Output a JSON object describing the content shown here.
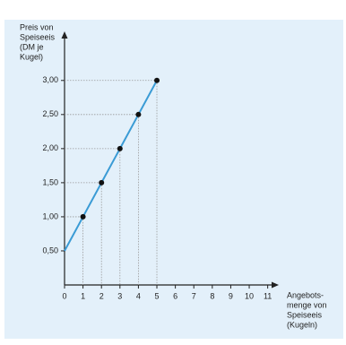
{
  "chart_data": {
    "type": "line",
    "ylabel": [
      "Preis von",
      "Speiseeis",
      "(DM je",
      "Kugel)"
    ],
    "xlabel": [
      "Angebots-",
      "menge von",
      "Speiseeis",
      "(Kugeln)"
    ],
    "line": {
      "x": [
        0,
        1,
        2,
        3,
        4,
        5
      ],
      "values": [
        0.5,
        1.0,
        1.5,
        2.0,
        2.5,
        3.0
      ],
      "color": "#3a9bd5"
    },
    "points": {
      "x": [
        1,
        2,
        3,
        4,
        5
      ],
      "values": [
        1.0,
        1.5,
        2.0,
        2.5,
        3.0
      ],
      "color": "#111111"
    },
    "xlim": [
      0,
      11.6
    ],
    "ylim": [
      0,
      3.72
    ],
    "xticks": [
      0,
      1,
      2,
      3,
      4,
      5,
      6,
      7,
      8,
      9,
      10,
      11
    ],
    "yticks": [
      {
        "value": 0.5,
        "label": "0,50"
      },
      {
        "value": 1.0,
        "label": "1,00"
      },
      {
        "value": 1.5,
        "label": "1,50"
      },
      {
        "value": 2.0,
        "label": "2,00"
      },
      {
        "value": 2.5,
        "label": "2,50"
      },
      {
        "value": 3.0,
        "label": "3,00"
      }
    ]
  }
}
